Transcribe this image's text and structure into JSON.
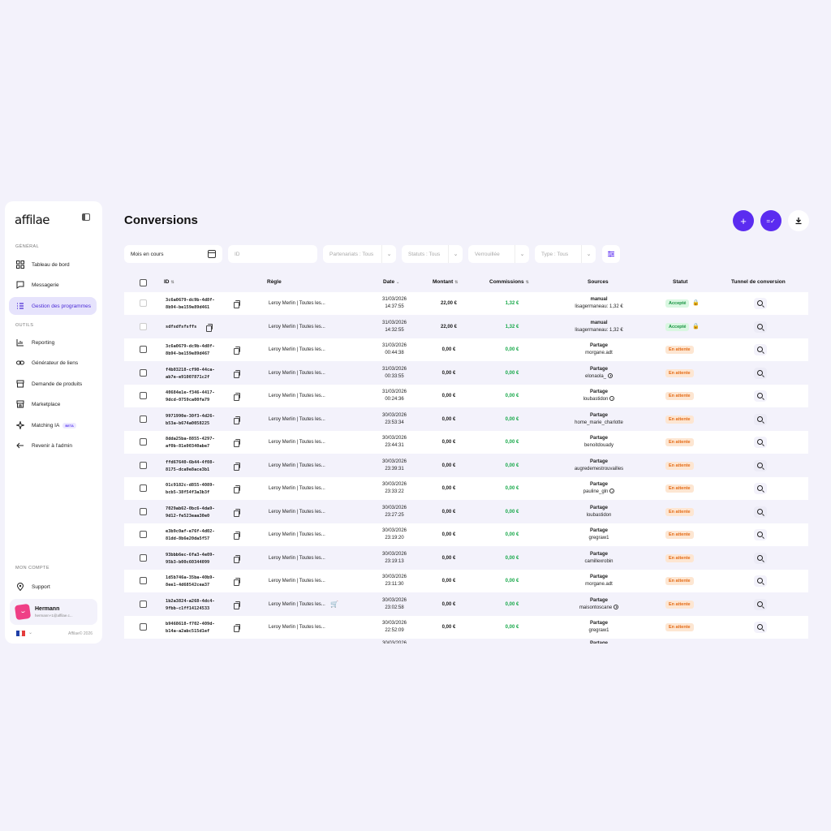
{
  "sidebar": {
    "logo": "affilae",
    "sections": {
      "general": "GÉNÉRAL",
      "tools": "OUTILS",
      "account": "MON COMPTE"
    },
    "items": [
      {
        "label": "Tableau de bord",
        "icon": "dashboard-icon"
      },
      {
        "label": "Messagerie",
        "icon": "chat-icon"
      },
      {
        "label": "Gestion des programmes",
        "icon": "list-icon",
        "active": true
      },
      {
        "label": "Reporting",
        "icon": "chart-icon"
      },
      {
        "label": "Générateur de liens",
        "icon": "link-icon"
      },
      {
        "label": "Demande de produits",
        "icon": "box-icon"
      },
      {
        "label": "Marketplace",
        "icon": "store-icon"
      },
      {
        "label": "Matching IA",
        "icon": "sparkle-icon",
        "badge": "BETA"
      },
      {
        "label": "Revenir à l'admin",
        "icon": "arrow-left-icon"
      },
      {
        "label": "Support",
        "icon": "location-pin-icon"
      }
    ],
    "user": {
      "name": "Hermann",
      "email": "hermann+1@affilae.c..."
    },
    "copyright": "Affilae© 2026"
  },
  "header": {
    "title": "Conversions"
  },
  "filters": {
    "period": "Mois en cours",
    "id_placeholder": "ID",
    "partnerships": "Partenariats : Tous",
    "status": "Statuts : Tous",
    "locked": "Verrouillée",
    "type": "Type : Tous"
  },
  "table": {
    "headers": {
      "id": "ID",
      "rule": "Règle",
      "date": "Date",
      "amount": "Montant",
      "commissions": "Commissions",
      "sources": "Sources",
      "status": "Statut",
      "funnel": "Tunnel de conversion"
    },
    "rows": [
      {
        "id1": "3c6a0679-dc9b-4d8f-",
        "id2": "8b94-be159e89d461",
        "rule": "Leroy Merlin | Toutes les...",
        "date": "31/03/2026",
        "time": "14:37:55",
        "amount": "22,00 €",
        "commission": "1,32 €",
        "src1": "manual",
        "src2": "lisagermaneau: 1,32 €",
        "status": "Accepté"
      },
      {
        "id1": "sdfsdfsfsffs",
        "id2": "",
        "rule": "Leroy Merlin | Toutes les...",
        "date": "31/03/2026",
        "time": "14:32:55",
        "amount": "22,00 €",
        "commission": "1,32 €",
        "src1": "manual",
        "src2": "lisagermaneau: 1,32 €",
        "status": "Accepté"
      },
      {
        "id1": "3c6a0679-dc9b-4d8f-",
        "id2": "8b94-be159e89d467",
        "rule": "Leroy Merlin | Toutes les...",
        "date": "31/03/2026",
        "time": "00:44:38",
        "amount": "0,00 €",
        "commission": "0,00 €",
        "src1": "Partage",
        "src2": "morgane.adt",
        "status": "En attente"
      },
      {
        "id1": "f4b03218-cf90-44ca-",
        "id2": "ab7e-e91007871c2f",
        "rule": "Leroy Merlin | Toutes les...",
        "date": "31/03/2026",
        "time": "00:33:55",
        "amount": "0,00 €",
        "commission": "0,00 €",
        "src1": "Partage",
        "src2": "elonaola_",
        "status": "En attente"
      },
      {
        "id1": "40684e1e-f346-4417-",
        "id2": "9dcd-0759ca00fa79",
        "rule": "Leroy Merlin | Toutes les...",
        "date": "31/03/2026",
        "time": "00:24:36",
        "amount": "0,00 €",
        "commission": "0,00 €",
        "src1": "Partage",
        "src2": "loubastidon",
        "status": "En attente"
      },
      {
        "id1": "9971990e-30f3-4d26-",
        "id2": "b53a-b674a0058225",
        "rule": "Leroy Merlin | Toutes les...",
        "date": "30/03/2026",
        "time": "23:53:34",
        "amount": "0,00 €",
        "commission": "0,00 €",
        "src1": "Partage",
        "src2": "home_marie_charlotte",
        "status": "En attente"
      },
      {
        "id1": "8dda25ba-8855-4297-",
        "id2": "af0b-81e90340abe7",
        "rule": "Leroy Merlin | Toutes les...",
        "date": "30/03/2026",
        "time": "23:44:31",
        "amount": "0,00 €",
        "commission": "0,00 €",
        "src1": "Partage",
        "src2": "benoitdouady",
        "status": "En attente"
      },
      {
        "id1": "ffd67640-6b44-4f08-",
        "id2": "8175-dca9e8ace3b1",
        "rule": "Leroy Merlin | Toutes les...",
        "date": "30/03/2026",
        "time": "23:39:31",
        "amount": "0,00 €",
        "commission": "0,00 €",
        "src1": "Partage",
        "src2": "augredemestrouvailles",
        "status": "En attente"
      },
      {
        "id1": "01c9182c-d855-4089-",
        "id2": "bcb5-38f54f3a3b3f",
        "rule": "Leroy Merlin | Toutes les...",
        "date": "30/03/2026",
        "time": "23:33:22",
        "amount": "0,00 €",
        "commission": "0,00 €",
        "src1": "Partage",
        "src2": "pauline_gln",
        "status": "En attente"
      },
      {
        "id1": "7029ab62-0bc6-4da9-",
        "id2": "9d12-fe523eaa30e0",
        "rule": "Leroy Merlin | Toutes les...",
        "date": "30/03/2026",
        "time": "23:27:25",
        "amount": "0,00 €",
        "commission": "0,00 €",
        "src1": "Partage",
        "src2": "loubastidon",
        "status": "En attente"
      },
      {
        "id1": "e3b9c0af-e76f-4d02-",
        "id2": "81dd-8b6e20da5f57",
        "rule": "Leroy Merlin | Toutes les...",
        "date": "30/03/2026",
        "time": "23:19:20",
        "amount": "0,00 €",
        "commission": "0,00 €",
        "src1": "Partage",
        "src2": "gregraw1",
        "status": "En attente"
      },
      {
        "id1": "93bbb6ec-6fa3-4e09-",
        "id2": "95b3-b00c60344099",
        "rule": "Leroy Merlin | Toutes les...",
        "date": "30/03/2026",
        "time": "23:19:13",
        "amount": "0,00 €",
        "commission": "0,00 €",
        "src1": "Partage",
        "src2": "camillexrobin",
        "status": "En attente"
      },
      {
        "id1": "1d5b746a-35ba-40b9-",
        "id2": "8ee1-4d68542cea37",
        "rule": "Leroy Merlin | Toutes les...",
        "date": "30/03/2026",
        "time": "23:11:30",
        "amount": "0,00 €",
        "commission": "0,00 €",
        "src1": "Partage",
        "src2": "morgane.adt",
        "status": "En attente"
      },
      {
        "id1": "1b2a3824-a268-4dc4-",
        "id2": "9fbb-c1ff14124533",
        "rule": "Leroy Merlin | Toutes les...",
        "date": "30/03/2026",
        "time": "23:02:58",
        "amount": "0,00 €",
        "commission": "0,00 €",
        "src1": "Partage",
        "src2": "maisontoscane",
        "status": "En attente"
      },
      {
        "id1": "b9468618-f702-409d-",
        "id2": "b14a-a2abc515d1ef",
        "rule": "Leroy Merlin | Toutes les...",
        "date": "30/03/2026",
        "time": "22:52:09",
        "amount": "0,00 €",
        "commission": "0,00 €",
        "src1": "Partage",
        "src2": "gregraw1",
        "status": "En attente"
      }
    ],
    "partial_row": {
      "date": "30/03/2026",
      "src1": "Partage"
    }
  }
}
